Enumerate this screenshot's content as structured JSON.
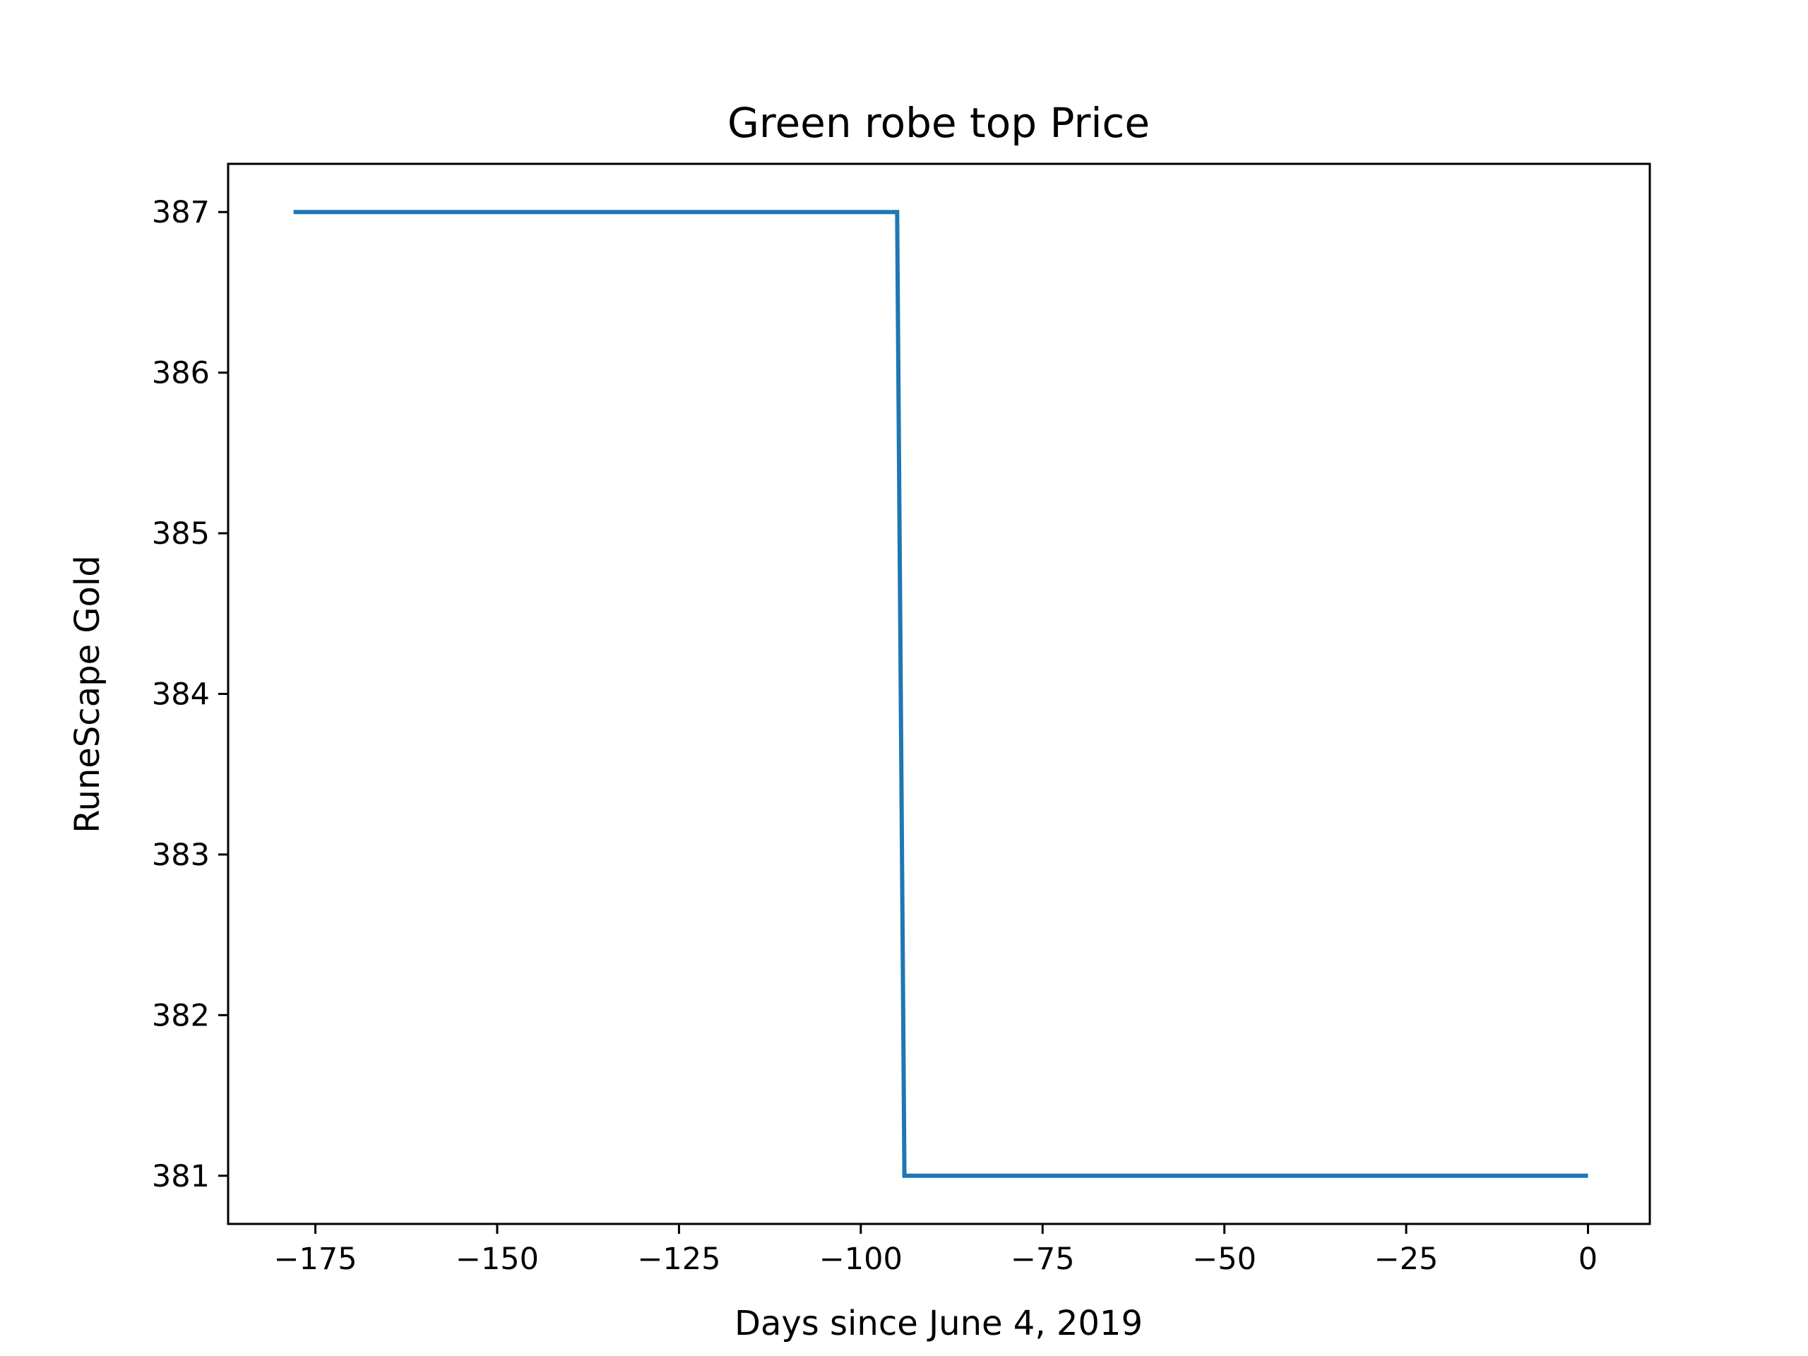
{
  "chart_data": {
    "type": "line",
    "title": "Green robe top Price",
    "xlabel": "Days since June 4, 2019",
    "ylabel": "RuneScape Gold",
    "xlim": [
      -187,
      8.5
    ],
    "ylim": [
      380.7,
      387.3
    ],
    "x_ticks": [
      -175,
      -150,
      -125,
      -100,
      -75,
      -50,
      -25,
      0
    ],
    "x_tick_labels": [
      "−175",
      "−150",
      "−125",
      "−100",
      "−75",
      "−50",
      "−25",
      "0"
    ],
    "y_ticks": [
      381,
      382,
      383,
      384,
      385,
      386,
      387
    ],
    "y_tick_labels": [
      "381",
      "382",
      "383",
      "384",
      "385",
      "386",
      "387"
    ],
    "grid": false,
    "series": [
      {
        "color": "#1f77b4",
        "x": [
          -178,
          -95,
          -94,
          0
        ],
        "y": [
          387,
          387,
          381,
          381
        ]
      }
    ]
  }
}
